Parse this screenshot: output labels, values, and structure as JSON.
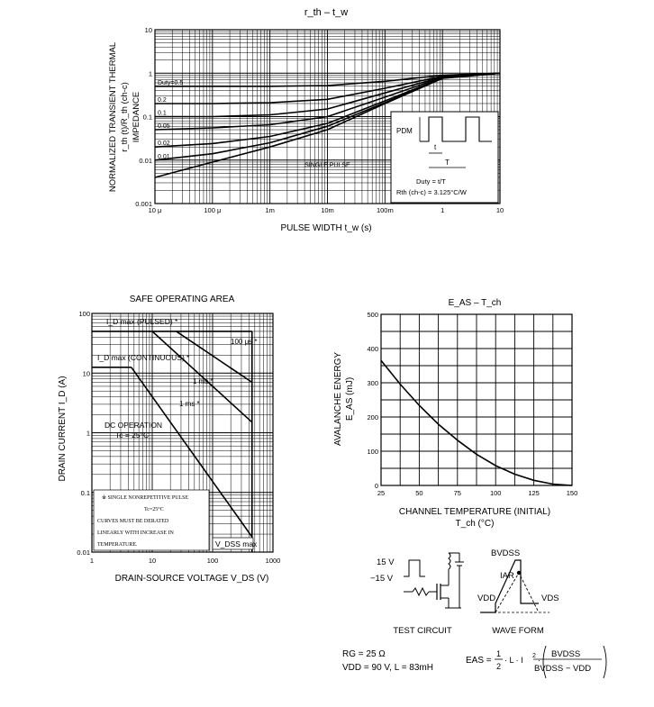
{
  "chart_data": [
    {
      "type": "line",
      "title": "r_th – t_w",
      "xlabel": "PULSE WIDTH   t_w   (s)",
      "ylabel_lines": [
        "NORMALIZED TRANSIENT THERMAL",
        "r_th (t)/R_th (ch-c)",
        "IMPEDANCE"
      ],
      "x_scale": "log",
      "y_scale": "log",
      "xlim": [
        1e-05,
        10
      ],
      "ylim": [
        0.001,
        10
      ],
      "x_ticks": [
        "10 μ",
        "100 μ",
        "1m",
        "10m",
        "100m",
        "1",
        "10"
      ],
      "y_ticks": [
        "0.001",
        "0.01",
        "0.1",
        "1",
        "10"
      ],
      "series": [
        {
          "name": "Duty=0.5",
          "x": [
            1e-05,
            0.0001,
            0.001,
            0.01,
            0.1,
            1,
            10
          ],
          "y": [
            0.5,
            0.5,
            0.5,
            0.52,
            0.65,
            0.9,
            1.0
          ]
        },
        {
          "name": "0.2",
          "x": [
            1e-05,
            0.0001,
            0.001,
            0.01,
            0.1,
            1,
            10
          ],
          "y": [
            0.2,
            0.2,
            0.21,
            0.25,
            0.45,
            0.85,
            1.0
          ]
        },
        {
          "name": "0.1",
          "x": [
            1e-05,
            0.0001,
            0.001,
            0.01,
            0.1,
            1,
            10
          ],
          "y": [
            0.1,
            0.1,
            0.11,
            0.15,
            0.35,
            0.82,
            1.0
          ]
        },
        {
          "name": "0.05",
          "x": [
            1e-05,
            0.0001,
            0.001,
            0.01,
            0.1,
            1,
            10
          ],
          "y": [
            0.05,
            0.055,
            0.065,
            0.1,
            0.28,
            0.8,
            1.0
          ]
        },
        {
          "name": "0.02",
          "x": [
            1e-05,
            0.0001,
            0.001,
            0.01,
            0.1,
            1,
            10
          ],
          "y": [
            0.02,
            0.024,
            0.035,
            0.07,
            0.23,
            0.78,
            1.0
          ]
        },
        {
          "name": "0.01",
          "x": [
            1e-05,
            0.0001,
            0.001,
            0.01,
            0.1,
            1,
            10
          ],
          "y": [
            0.01,
            0.014,
            0.025,
            0.06,
            0.21,
            0.77,
            1.0
          ]
        },
        {
          "name": "SINGLE PULSE",
          "x": [
            1e-05,
            0.0001,
            0.001,
            0.01,
            0.1,
            1,
            10
          ],
          "y": [
            0.004,
            0.009,
            0.02,
            0.05,
            0.2,
            0.76,
            1.0
          ]
        }
      ],
      "inset": {
        "label_pdm": "PDM",
        "label_t": "t",
        "label_T": "T",
        "duty_text": "Duty = t/T",
        "rth_text": "Rth (ch-c) = 3.125°C/W"
      }
    },
    {
      "type": "line",
      "title": "SAFE OPERATING AREA",
      "xlabel": "DRAIN-SOURCE VOLTAGE   V_DS   (V)",
      "ylabel": "DRAIN CURRENT   I_D   (A)",
      "x_scale": "log",
      "y_scale": "log",
      "xlim": [
        1,
        1000
      ],
      "ylim": [
        0.01,
        100
      ],
      "x_ticks": [
        "1",
        "10",
        "100",
        "1000"
      ],
      "y_ticks": [
        "0.01",
        "0.1",
        "1",
        "10",
        "100"
      ],
      "series": [
        {
          "name": "I_D max (PULSED) *",
          "x": [
            1,
            3,
            5,
            450
          ],
          "y": [
            50,
            50,
            50,
            50
          ]
        },
        {
          "name": "I_D max (CONTINUOUS) *",
          "x": [
            1,
            4.5
          ],
          "y": [
            12.5,
            12.5
          ]
        },
        {
          "name": "100 μs *",
          "x": [
            25,
            450
          ],
          "y": [
            50,
            7
          ]
        },
        {
          "name": "1 ms *",
          "x": [
            10,
            450
          ],
          "y": [
            50,
            1.5
          ]
        },
        {
          "name": "DC OPERATION Tc = 25°C",
          "x": [
            4.5,
            450
          ],
          "y": [
            12.5,
            0.018
          ]
        }
      ],
      "labels": {
        "pulsed": "I_D max (PULSED) *",
        "continuous": "I_D max (CONTINUOUS) *",
        "us100": "100 μs *",
        "ms1a": "1 ms *",
        "ms1b": "1 ms *",
        "dc1": "DC OPERATION",
        "dc2": "Tc = 25°C",
        "vdss": "V_DSS max"
      },
      "note": {
        "l1": "※ SINGLE NONREPETITIVE PULSE",
        "l2": "Tc=25°C",
        "l3": "CURVES   MUST   BE   DERATED",
        "l4": "LINEARLY   WITH   INCREASE   IN",
        "l5": "TEMPERATURE."
      }
    },
    {
      "type": "line",
      "title": "E_AS – T_ch",
      "xlabel": "CHANNEL TEMPERATURE (INITIAL)",
      "xlabel2": "T_ch   (°C)",
      "ylabel": "AVALANCHE ENERGY",
      "ylabel2": "E_AS   (mJ)",
      "xlim": [
        25,
        150
      ],
      "ylim": [
        0,
        500
      ],
      "x_ticks": [
        "25",
        "50",
        "75",
        "100",
        "125",
        "150"
      ],
      "y_ticks": [
        "0",
        "100",
        "200",
        "300",
        "400",
        "500"
      ],
      "series": [
        {
          "name": "E_AS",
          "x": [
            25,
            37.5,
            50,
            62.5,
            75,
            87.5,
            100,
            112.5,
            125,
            137.5,
            150
          ],
          "y": [
            365,
            296,
            234,
            179,
            132,
            91,
            58,
            33,
            15,
            4,
            0
          ]
        }
      ]
    }
  ],
  "circuit": {
    "v_high": "15 V",
    "v_low": "−15 V",
    "test_circuit": "TEST CIRCUIT",
    "wave_form": "WAVE FORM",
    "bvdss": "BVDSS",
    "iar": "IAR",
    "vdd": "VDD",
    "vds": "VDS",
    "rg": "RG = 25 Ω",
    "vdd_line": "VDD = 90 V, L = 83mH",
    "eas_prefix": "EAS =",
    "frac_num": "1",
    "frac_den": "2",
    "mid": "· L · I",
    "sq": "2",
    "dot": "·",
    "num2": "BVDSS",
    "den2": "BVDSS − VDD"
  }
}
